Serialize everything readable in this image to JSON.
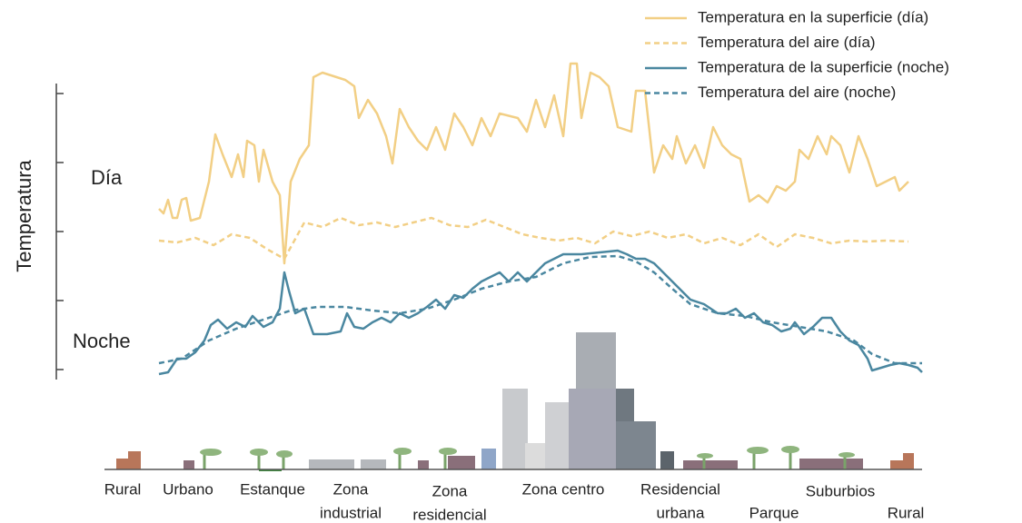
{
  "chart_data": {
    "type": "line",
    "ylabel": "Temperatura",
    "annotations": [
      "Día",
      "Noche"
    ],
    "xlim": [
      0,
      840
    ],
    "ylim": [
      -11,
      315
    ],
    "yticks": [
      0,
      76,
      152,
      228,
      304
    ],
    "zones": [
      [
        "Rural"
      ],
      [
        "Urbano"
      ],
      [
        "Estanque"
      ],
      [
        "Zona",
        "industrial"
      ],
      [
        "Zona",
        "residencial"
      ],
      [
        "Zona centro"
      ],
      [
        "Residencial",
        "urbana"
      ],
      [
        "Parque"
      ],
      [
        "Suburbios"
      ],
      [
        "Rural"
      ]
    ],
    "series": [
      {
        "name": "Temperatura en la superficie (día)",
        "color": "#f2cf85",
        "dash": false,
        "x": [
          0,
          5,
          10,
          15,
          20,
          25,
          30,
          35,
          45,
          55,
          62,
          70,
          80,
          87,
          93,
          97,
          105,
          110,
          115,
          125,
          133,
          138,
          145,
          155,
          165,
          170,
          180,
          205,
          215,
          220,
          230,
          240,
          250,
          257,
          265,
          275,
          285,
          295,
          305,
          315,
          325,
          335,
          345,
          355,
          365,
          375,
          395,
          405,
          415,
          425,
          435,
          445,
          453,
          460,
          465,
          475,
          485,
          495,
          505,
          520,
          525,
          535,
          545,
          555,
          565,
          570,
          580,
          590,
          600,
          610,
          620,
          630,
          640,
          650,
          660,
          670,
          680,
          690,
          700,
          705,
          715,
          725,
          735,
          740,
          750,
          760,
          770,
          780,
          790,
          800,
          810,
          815,
          825
        ],
        "values": [
          177,
          172,
          187,
          167,
          167,
          187,
          189,
          164,
          167,
          207,
          259,
          237,
          212,
          237,
          212,
          252,
          247,
          207,
          242,
          207,
          192,
          117,
          207,
          232,
          247,
          322,
          327,
          319,
          312,
          277,
          297,
          282,
          257,
          227,
          287,
          267,
          252,
          242,
          267,
          242,
          282,
          267,
          247,
          277,
          257,
          282,
          277,
          262,
          297,
          267,
          302,
          257,
          337,
          337,
          277,
          327,
          322,
          312,
          267,
          262,
          307,
          307,
          217,
          247,
          232,
          257,
          227,
          247,
          222,
          267,
          247,
          237,
          232,
          185,
          192,
          184,
          202,
          197,
          207,
          242,
          232,
          257,
          237,
          257,
          247,
          217,
          257,
          232,
          202,
          207,
          212,
          197,
          207
        ]
      },
      {
        "name": "Temperatura del aire (día)",
        "color": "#f2cf85",
        "dash": true,
        "x": [
          0,
          20,
          40,
          60,
          80,
          100,
          120,
          138,
          160,
          180,
          200,
          220,
          240,
          260,
          280,
          300,
          320,
          340,
          360,
          380,
          400,
          420,
          440,
          460,
          480,
          500,
          520,
          540,
          560,
          580,
          600,
          620,
          640,
          660,
          680,
          700,
          720,
          740,
          760,
          780,
          800,
          825
        ],
        "values": [
          142,
          140,
          145,
          137,
          149,
          145,
          132,
          122,
          162,
          157,
          167,
          159,
          162,
          157,
          162,
          167,
          159,
          157,
          165,
          157,
          149,
          145,
          142,
          145,
          139,
          152,
          147,
          152,
          145,
          149,
          139,
          145,
          137,
          149,
          135,
          149,
          145,
          139,
          142,
          141,
          142,
          141
        ]
      },
      {
        "name": "Temperatura de la superficie (noche)",
        "color": "#4a87a0",
        "dash": false,
        "x": [
          0,
          10,
          20,
          30,
          40,
          50,
          57,
          65,
          75,
          85,
          95,
          103,
          115,
          125,
          133,
          138,
          143,
          150,
          160,
          170,
          185,
          200,
          207,
          215,
          225,
          235,
          245,
          255,
          265,
          275,
          285,
          295,
          305,
          315,
          325,
          335,
          345,
          355,
          365,
          375,
          385,
          395,
          405,
          415,
          425,
          435,
          445,
          465,
          485,
          505,
          515,
          525,
          535,
          545,
          555,
          565,
          575,
          585,
          600,
          615,
          625,
          635,
          645,
          655,
          665,
          675,
          685,
          695,
          700,
          710,
          720,
          730,
          740,
          750,
          760,
          770,
          780,
          785,
          795,
          805,
          815,
          825,
          835,
          840
        ],
        "values": [
          -5,
          -3,
          12,
          12,
          19,
          32,
          49,
          55,
          45,
          52,
          47,
          59,
          47,
          52,
          67,
          107,
          87,
          62,
          67,
          39,
          39,
          42,
          62,
          47,
          45,
          52,
          57,
          52,
          62,
          57,
          62,
          69,
          77,
          67,
          82,
          79,
          89,
          97,
          102,
          107,
          97,
          107,
          97,
          107,
          117,
          122,
          127,
          127,
          129,
          131,
          127,
          122,
          122,
          117,
          107,
          97,
          87,
          77,
          72,
          62,
          62,
          67,
          57,
          62,
          52,
          49,
          42,
          45,
          52,
          39,
          47,
          57,
          57,
          42,
          32,
          27,
          12,
          -1,
          2,
          5,
          7,
          5,
          2,
          -3
        ]
      },
      {
        "name": "Temperatura del aire (noche)",
        "color": "#4a87a0",
        "dash": true,
        "x": [
          0,
          25,
          55,
          85,
          115,
          145,
          175,
          205,
          235,
          265,
          295,
          325,
          355,
          385,
          415,
          445,
          475,
          505,
          525,
          545,
          565,
          585,
          615,
          645,
          675,
          705,
          735,
          765,
          785,
          810,
          840
        ],
        "values": [
          7,
          12,
          32,
          45,
          55,
          65,
          69,
          69,
          65,
          62,
          67,
          77,
          89,
          97,
          102,
          117,
          124,
          125,
          119,
          107,
          89,
          72,
          62,
          59,
          52,
          47,
          42,
          32,
          17,
          7,
          7
        ]
      }
    ]
  }
}
